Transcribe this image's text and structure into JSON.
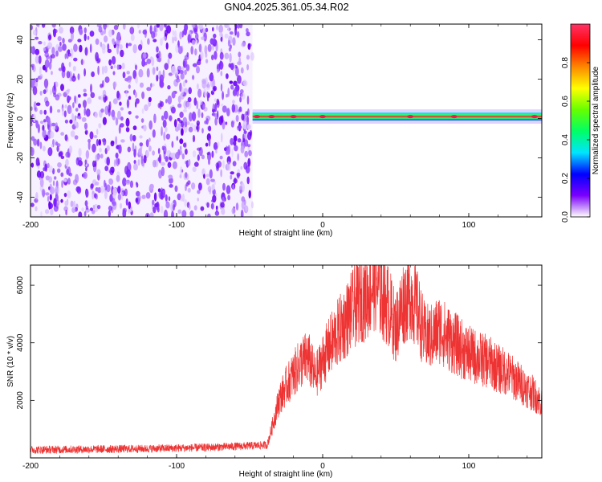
{
  "title": "GN04.2025.361.05.34.R02",
  "colors": {
    "snr_line": "#ee3333",
    "background": "#ffffff",
    "frame": "#000000"
  },
  "chart_data": [
    {
      "type": "heatmap",
      "title": "",
      "xlabel": "Height of straight line (km)",
      "ylabel": "Frequency (Hz)",
      "xlim": [
        -200,
        150
      ],
      "ylim": [
        -50,
        48
      ],
      "xticks": [
        -200,
        -100,
        0,
        100
      ],
      "xtick_labels": [
        "-200",
        "-100",
        "0",
        "100"
      ],
      "yticks": [
        -40,
        -20,
        0,
        20,
        40
      ],
      "ytick_labels": [
        "-40",
        "-20",
        "0",
        "20",
        "40"
      ],
      "noise_region_x": [
        -200,
        -48
      ],
      "signal_band": {
        "x_start": -48,
        "x_end": 150,
        "center_frequency_hz": 1,
        "width_hz": 4,
        "peak_heights_km": [
          -45,
          -35,
          -20,
          0,
          60,
          90,
          145
        ]
      },
      "colorbar": {
        "label": "Normalized spectral amplitude",
        "range": [
          0,
          1
        ],
        "ticks": [
          0.0,
          0.2,
          0.4,
          0.6,
          0.8
        ],
        "tick_labels": [
          "0.0",
          "0.2",
          "0.4",
          "0.6",
          "0.8"
        ],
        "stops": [
          "#ffffff",
          "#7b00ff",
          "#0000ff",
          "#00e5ff",
          "#00ff66",
          "#66ff00",
          "#ffff00",
          "#ff8800",
          "#ff0000",
          "#ff3366"
        ]
      }
    },
    {
      "type": "line",
      "title": "",
      "xlabel": "Height of straight line (km)",
      "ylabel": "SNR (10 * v/v)",
      "xlim": [
        -200,
        150
      ],
      "ylim": [
        0,
        6700
      ],
      "xticks": [
        -200,
        -100,
        0,
        100
      ],
      "xtick_labels": [
        "-200",
        "-100",
        "0",
        "100"
      ],
      "yticks": [
        2000,
        4000,
        6000
      ],
      "ytick_labels": [
        "2000",
        "4000",
        "6000"
      ],
      "series": [
        {
          "name": "SNR",
          "x": [
            -200,
            -180,
            -160,
            -140,
            -120,
            -100,
            -80,
            -60,
            -45,
            -38,
            -35,
            -30,
            -25,
            -20,
            -15,
            -10,
            -5,
            0,
            5,
            10,
            15,
            20,
            25,
            30,
            35,
            40,
            45,
            50,
            55,
            60,
            65,
            70,
            75,
            80,
            85,
            90,
            95,
            100,
            105,
            110,
            115,
            120,
            125,
            130,
            135,
            140,
            145,
            150
          ],
          "values": [
            280,
            290,
            300,
            310,
            320,
            340,
            360,
            400,
            430,
            450,
            1000,
            2000,
            2500,
            2900,
            3300,
            3500,
            2800,
            3400,
            3900,
            4300,
            4700,
            5100,
            5500,
            5600,
            6100,
            5700,
            5300,
            4500,
            5400,
            5700,
            5100,
            4200,
            4200,
            4500,
            4200,
            4000,
            3800,
            3600,
            3500,
            3400,
            3300,
            3100,
            3000,
            2800,
            2600,
            2400,
            2200,
            1900
          ]
        }
      ]
    }
  ]
}
